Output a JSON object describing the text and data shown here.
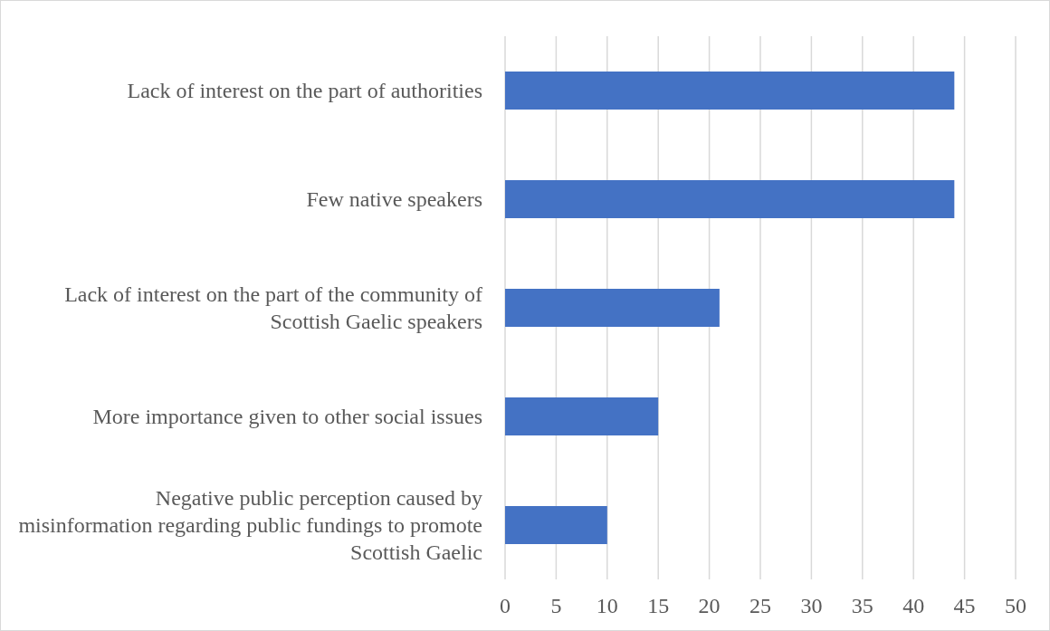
{
  "chart_data": {
    "type": "bar",
    "orientation": "horizontal",
    "categories": [
      "Lack of interest on the part of authorities",
      "Few native speakers",
      "Lack of interest on the part of the community of Scottish Gaelic speakers",
      "More importance given to other social issues",
      "Negative public perception caused by misinformation regarding public fundings to promote Scottish Gaelic"
    ],
    "values": [
      44,
      44,
      21,
      15,
      10
    ],
    "color": "#4472c4",
    "xlim": [
      0,
      50
    ],
    "xticks": [
      0,
      5,
      10,
      15,
      20,
      25,
      30,
      35,
      40,
      45,
      50
    ],
    "grid": "x"
  }
}
